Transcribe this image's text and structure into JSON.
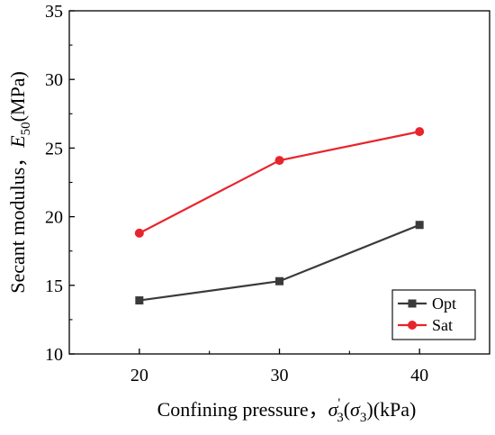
{
  "chart_data": {
    "type": "line",
    "x": [
      20,
      30,
      40
    ],
    "xlim": [
      15,
      45
    ],
    "ylim": [
      10,
      35
    ],
    "x_ticks": [
      20,
      30,
      40
    ],
    "y_ticks": [
      10,
      15,
      20,
      25,
      30,
      35
    ],
    "xlabel": {
      "prefix": "Confining pressure，",
      "sym": "σ",
      "sub": "3",
      "prime": "'",
      "mid_open": "(",
      "sym2": "σ",
      "sub2": "3",
      "suffix": ")(kPa)"
    },
    "ylabel": {
      "prefix": "Secant modulus，",
      "sym": "E",
      "sub": "50",
      "suffix": "(MPa)"
    },
    "legend_position": "bottom-right",
    "grid": false,
    "series": [
      {
        "name": "Opt",
        "values": [
          13.9,
          15.3,
          19.4
        ],
        "color": "#3a3a3a",
        "marker": "square"
      },
      {
        "name": "Sat",
        "values": [
          18.8,
          24.1,
          26.2
        ],
        "color": "#e8242c",
        "marker": "circle"
      }
    ]
  }
}
